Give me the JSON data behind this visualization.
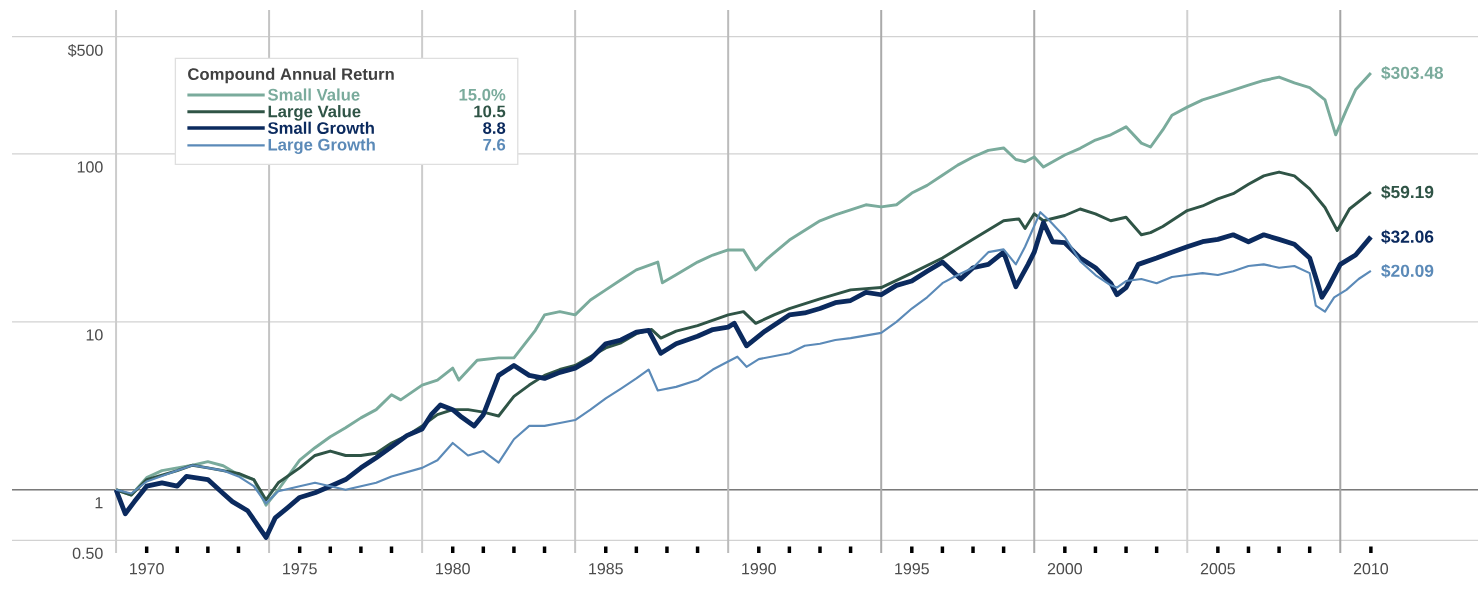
{
  "chart_data": {
    "type": "line",
    "legend_title": "Compound Annual Return",
    "legend": "top left",
    "log": "y",
    "grid": "y",
    "xlim": [
      1965.6,
      2013.5
    ],
    "ylim": [
      0.42,
      720
    ],
    "xticks": [
      {
        "value": 1970,
        "label": "1970"
      },
      {
        "value": 1971,
        "label": null
      },
      {
        "value": 1972,
        "label": null
      },
      {
        "value": 1973,
        "label": null
      },
      {
        "value": 1975,
        "label": "1975"
      },
      {
        "value": 1976,
        "label": null
      },
      {
        "value": 1977,
        "label": null
      },
      {
        "value": 1978,
        "label": null
      },
      {
        "value": 1980,
        "label": "1980"
      },
      {
        "value": 1981,
        "label": null
      },
      {
        "value": 1982,
        "label": null
      },
      {
        "value": 1983,
        "label": null
      },
      {
        "value": 1985,
        "label": "1985"
      },
      {
        "value": 1986,
        "label": null
      },
      {
        "value": 1987,
        "label": null
      },
      {
        "value": 1988,
        "label": null
      },
      {
        "value": 1990,
        "label": "1990"
      },
      {
        "value": 1991,
        "label": null
      },
      {
        "value": 1992,
        "label": null
      },
      {
        "value": 1993,
        "label": null
      },
      {
        "value": 1995,
        "label": "1995"
      },
      {
        "value": 1996,
        "label": null
      },
      {
        "value": 1997,
        "label": null
      },
      {
        "value": 1998,
        "label": null
      },
      {
        "value": 2000,
        "label": "2000"
      },
      {
        "value": 2001,
        "label": null
      },
      {
        "value": 2002,
        "label": null
      },
      {
        "value": 2003,
        "label": null
      },
      {
        "value": 2005,
        "label": "2005"
      },
      {
        "value": 2006,
        "label": null
      },
      {
        "value": 2007,
        "label": null
      },
      {
        "value": 2008,
        "label": null
      },
      {
        "value": 2010,
        "label": "2010"
      }
    ],
    "yticks": [
      {
        "value": 500,
        "label": "$500"
      },
      100,
      10,
      1,
      {
        "value": 0.5,
        "label": "0.50"
      }
    ],
    "ref_lines": [
      {
        "axis": "y",
        "value": 1,
        "color": "#7a7a7a"
      },
      {
        "axis": "x",
        "value": 1969,
        "color": "#cccccc"
      },
      {
        "axis": "x",
        "value": 1974,
        "color": "#c4c4c4"
      },
      {
        "axis": "x",
        "value": 1979,
        "color": "#cccccc"
      },
      {
        "axis": "x",
        "value": 1984,
        "color": "#c4c4c4"
      },
      {
        "axis": "x",
        "value": 1989,
        "color": "#bbbbbb"
      },
      {
        "axis": "x",
        "value": 1994,
        "color": "#aaaaaa"
      },
      {
        "axis": "x",
        "value": 1999,
        "color": "#aaaaaa"
      },
      {
        "axis": "x",
        "value": 2004,
        "color": "#d0d0d0"
      },
      {
        "axis": "x",
        "value": 2009,
        "color": "#a5a5a5"
      }
    ],
    "annotations": [
      "$303.48",
      "$59.19",
      "$32.06",
      "$20.09",
      "15.0%",
      "10.5",
      "8.8",
      "7.6"
    ],
    "series": [
      {
        "name": "Small Value",
        "color": "#7aab9c",
        "x": [
          1969,
          1969.5,
          1970,
          1970.5,
          1971,
          1971.5,
          1972,
          1972.5,
          1973,
          1973.5,
          1973.9,
          1974.3,
          1975,
          1975.5,
          1976,
          1976.5,
          1977,
          1977.5,
          1978,
          1978.3,
          1979,
          1979.5,
          1980,
          1980.2,
          1980.8,
          1981.5,
          1982,
          1982.7,
          1983,
          1983.5,
          1984,
          1984.5,
          1985,
          1985.5,
          1986,
          1986.7,
          1986.85,
          1987.3,
          1988,
          1988.5,
          1989,
          1989.5,
          1989.9,
          1990.3,
          1991,
          1992,
          1992.5,
          1993,
          1993.5,
          1994,
          1994.5,
          1995,
          1995.5,
          1996,
          1996.5,
          1997,
          1997.5,
          1998,
          1998.4,
          1998.7,
          1999,
          1999.3,
          2000,
          2000.5,
          2001,
          2001.5,
          2002,
          2002.5,
          2002.8,
          2003.2,
          2003.5,
          2004,
          2004.5,
          2005,
          2005.5,
          2006,
          2006.5,
          2007,
          2007.5,
          2008,
          2008.5,
          2008.85,
          2009.2,
          2009.5,
          2010
        ],
        "values": [
          1.0,
          0.93,
          1.18,
          1.3,
          1.35,
          1.4,
          1.47,
          1.39,
          1.23,
          1.15,
          0.81,
          1.0,
          1.5,
          1.78,
          2.07,
          2.34,
          2.68,
          3.0,
          3.68,
          3.43,
          4.2,
          4.5,
          5.3,
          4.5,
          5.9,
          6.1,
          6.1,
          8.9,
          11,
          11.5,
          11,
          13.5,
          15.5,
          17.8,
          20.4,
          22.7,
          17.1,
          19.1,
          22.7,
          25,
          26.8,
          26.8,
          20.4,
          24,
          30.7,
          40,
          43.4,
          46.5,
          49.8,
          48.4,
          49.8,
          58.5,
          65,
          74.7,
          85.8,
          95.9,
          105,
          108.6,
          92.7,
          89.9,
          95.9,
          83.5,
          98.6,
          108,
          121,
          130,
          145,
          116,
          110,
          139,
          170,
          190,
          210,
          224,
          240,
          257,
          274,
          287,
          265,
          248,
          210,
          130,
          183,
          241,
          303.48
        ]
      },
      {
        "name": "Large Value",
        "color": "#2f5446",
        "x": [
          1969,
          1969.5,
          1970,
          1971,
          1971.5,
          1972,
          1972.5,
          1973,
          1973.5,
          1973.9,
          1974.3,
          1975,
          1975.5,
          1976,
          1976.5,
          1977,
          1977.5,
          1978,
          1978.5,
          1979,
          1979.5,
          1980,
          1980.5,
          1981,
          1981.5,
          1982,
          1982.5,
          1983,
          1983.5,
          1984,
          1984.5,
          1985,
          1985.5,
          1986,
          1986.5,
          1986.8,
          1987.3,
          1988,
          1989,
          1989.5,
          1989.9,
          1990.5,
          1991,
          1992,
          1993,
          1994,
          1995,
          1996,
          1997,
          1998,
          1998.5,
          1998.7,
          1999,
          1999.3,
          2000,
          2000.5,
          2001,
          2001.5,
          2002,
          2002.5,
          2002.8,
          2003.2,
          2004,
          2004.5,
          2005,
          2005.5,
          2006,
          2006.5,
          2007,
          2007.5,
          2008,
          2008.5,
          2008.9,
          2009.3,
          2010
        ],
        "values": [
          1.0,
          0.93,
          1.15,
          1.3,
          1.4,
          1.35,
          1.3,
          1.25,
          1.15,
          0.87,
          1.1,
          1.35,
          1.6,
          1.7,
          1.6,
          1.6,
          1.65,
          1.9,
          2.1,
          2.4,
          2.8,
          3.0,
          3.0,
          2.9,
          2.75,
          3.6,
          4.2,
          4.8,
          5.2,
          5.5,
          6.2,
          7.0,
          7.5,
          8.5,
          9.0,
          8.0,
          8.8,
          9.5,
          11,
          11.5,
          9.8,
          11,
          12,
          13.7,
          15.5,
          16,
          19.5,
          24,
          31,
          40,
          41,
          36,
          44,
          40,
          43,
          47,
          44,
          40,
          42,
          33,
          34,
          37,
          46,
          49,
          54,
          58,
          66,
          74,
          78,
          74,
          62,
          48,
          35,
          47,
          59.19
        ]
      },
      {
        "name": "Small Growth",
        "color": "#0b2a5e",
        "x": [
          1969,
          1969.3,
          1969.6,
          1970,
          1970.5,
          1971,
          1971.3,
          1972,
          1972.5,
          1972.8,
          1973.3,
          1973.9,
          1974.2,
          1974.6,
          1975,
          1975.5,
          1976,
          1976.5,
          1977,
          1977.5,
          1978,
          1978.5,
          1979,
          1979.3,
          1979.6,
          1980,
          1980.3,
          1980.7,
          1981,
          1981.5,
          1982,
          1982.5,
          1983,
          1983.5,
          1984,
          1984.5,
          1985,
          1985.5,
          1986,
          1986.4,
          1986.8,
          1987.3,
          1988,
          1988.5,
          1989,
          1989.2,
          1989.6,
          1990.2,
          1991,
          1991.5,
          1992,
          1992.5,
          1993,
          1993.5,
          1994,
          1994.5,
          1995,
          1995.5,
          1996,
          1996.6,
          1997,
          1997.5,
          1998,
          1998.4,
          1998.8,
          1999,
          1999.3,
          1999.6,
          2000,
          2000.5,
          2001,
          2001.5,
          2001.7,
          2002,
          2002.4,
          2003,
          2003.5,
          2004,
          2004.5,
          2005,
          2005.5,
          2006,
          2006.5,
          2007,
          2007.5,
          2008,
          2008.4,
          2008.6,
          2009,
          2009.5,
          2010
        ],
        "values": [
          1.0,
          0.72,
          0.85,
          1.05,
          1.1,
          1.05,
          1.2,
          1.15,
          0.95,
          0.85,
          0.75,
          0.52,
          0.68,
          0.78,
          0.9,
          0.96,
          1.05,
          1.15,
          1.35,
          1.55,
          1.8,
          2.1,
          2.3,
          2.8,
          3.2,
          3.0,
          2.7,
          2.4,
          2.8,
          4.8,
          5.5,
          4.8,
          4.6,
          5.0,
          5.3,
          6.0,
          7.4,
          7.8,
          8.7,
          8.9,
          6.5,
          7.4,
          8.2,
          9.0,
          9.3,
          9.8,
          7.2,
          8.8,
          11,
          11.3,
          12,
          13,
          13.4,
          15,
          14.5,
          16.5,
          17.5,
          20,
          22.7,
          18,
          21,
          22,
          26,
          16.2,
          22,
          26,
          39,
          30,
          29.6,
          24,
          21,
          17,
          14.5,
          16,
          22,
          24,
          26,
          28,
          30,
          31,
          33,
          30,
          33,
          31,
          29,
          24,
          14,
          16,
          22,
          25,
          32.06
        ]
      },
      {
        "name": "Large Growth",
        "color": "#5b8ab8",
        "x": [
          1969,
          1969.5,
          1970,
          1971,
          1971.5,
          1972,
          1972.5,
          1973,
          1973.5,
          1973.9,
          1974.3,
          1975,
          1975.5,
          1976,
          1976.5,
          1977,
          1977.5,
          1978,
          1979,
          1979.5,
          1980,
          1980.5,
          1981,
          1981.5,
          1982,
          1982.5,
          1983,
          1983.5,
          1984,
          1984.5,
          1985,
          1985.5,
          1986,
          1986.4,
          1986.7,
          1987.3,
          1988,
          1988.5,
          1989,
          1989.3,
          1989.6,
          1990,
          1991,
          1991.5,
          1992,
          1992.5,
          1993,
          1994,
          1994.5,
          1995,
          1995.5,
          1996,
          1996.5,
          1997,
          1997.5,
          1998,
          1998.4,
          1998.7,
          1999.2,
          1999.5,
          2000,
          2000.5,
          2001,
          2001.5,
          2001.7,
          2002,
          2002.5,
          2003,
          2003.5,
          2004,
          2004.5,
          2005,
          2005.5,
          2006,
          2006.5,
          2007,
          2007.5,
          2008,
          2008.2,
          2008.5,
          2008.8,
          2009.2,
          2009.6,
          2010
        ],
        "values": [
          1.0,
          0.95,
          1.12,
          1.3,
          1.4,
          1.35,
          1.3,
          1.2,
          1.05,
          0.83,
          0.98,
          1.05,
          1.1,
          1.05,
          1.0,
          1.05,
          1.1,
          1.2,
          1.35,
          1.5,
          1.9,
          1.6,
          1.7,
          1.45,
          2.0,
          2.4,
          2.4,
          2.5,
          2.6,
          3.0,
          3.5,
          4.0,
          4.6,
          5.2,
          3.9,
          4.1,
          4.5,
          5.2,
          5.8,
          6.2,
          5.4,
          6.0,
          6.5,
          7.2,
          7.4,
          7.8,
          8.0,
          8.6,
          10,
          12,
          14,
          17,
          19,
          21,
          26,
          27,
          22,
          28,
          45,
          40,
          32,
          23,
          19,
          16.5,
          16,
          17.5,
          18,
          17,
          18.5,
          19,
          19.5,
          19,
          20,
          21.5,
          22,
          21,
          21.5,
          19.5,
          12.5,
          11.5,
          14,
          15.5,
          18,
          20.09
        ]
      }
    ]
  }
}
